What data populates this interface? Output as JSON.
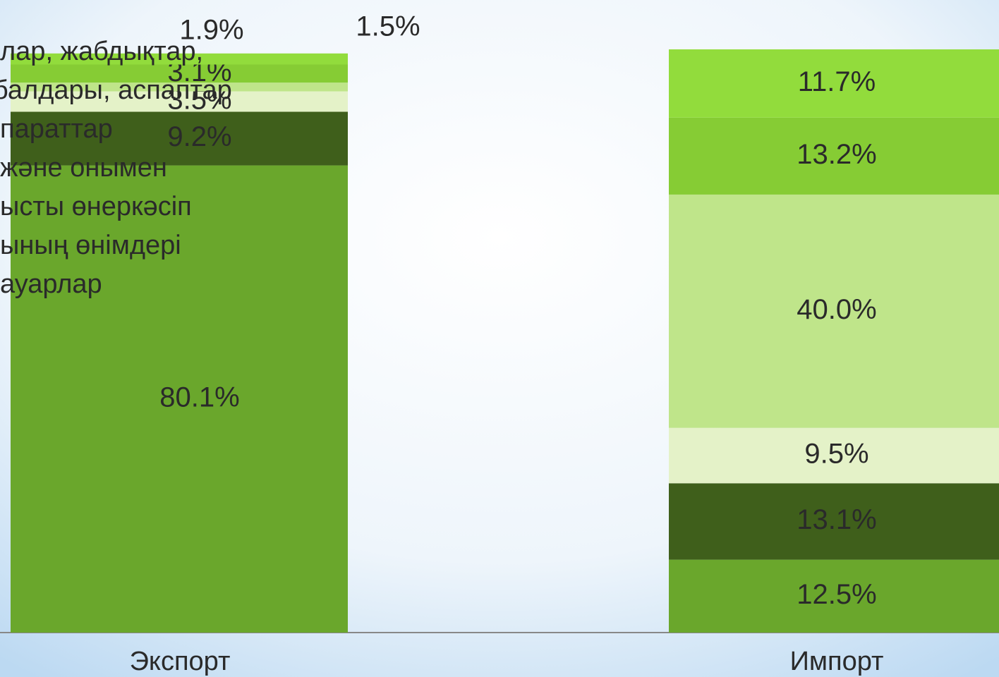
{
  "chart_data": {
    "type": "stacked_bar",
    "categories": [
      "Экспорт",
      "Импорт"
    ],
    "ylim": [
      0,
      100
    ],
    "series": [
      {
        "color": "#6aa72c",
        "values": [
          80.1,
          12.5
        ],
        "value_labels": [
          "80.1%",
          "12.5%"
        ]
      },
      {
        "color": "#3f5f1b",
        "values": [
          9.2,
          13.1
        ],
        "value_labels": [
          "9.2%",
          "13.1%"
        ]
      },
      {
        "color": "#e4f2c8",
        "values": [
          3.5,
          9.5
        ],
        "value_labels": [
          "3.5%",
          "9.5%"
        ]
      },
      {
        "color": "#bfe58a",
        "values": [
          1.5,
          40.0
        ],
        "value_labels": [
          "1.5%",
          "40.0%"
        ]
      },
      {
        "color": "#86cc34",
        "values": [
          3.1,
          13.2
        ],
        "value_labels": [
          "3.1%",
          "13.2%"
        ]
      },
      {
        "color": "#92dc3c",
        "values": [
          1.9,
          11.7
        ],
        "value_labels": [
          "1.9%",
          "11.7%"
        ]
      }
    ],
    "annotations": [
      "лар, жабдықтар,",
      "балдары, аспаптар",
      "параттар",
      "және онымен",
      "ысты өнеркәсіп",
      "ының өнімдері",
      "ауарлар"
    ]
  }
}
